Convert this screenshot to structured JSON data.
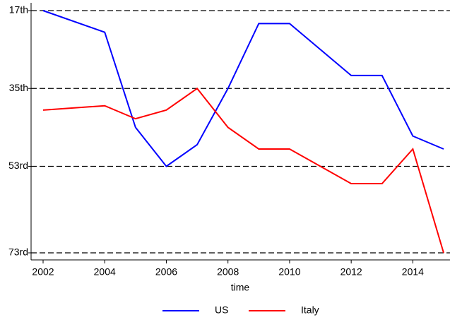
{
  "chart_data": {
    "type": "line",
    "x_label": "time",
    "x": [
      2002,
      2004,
      2005,
      2006,
      2007,
      2008,
      2009,
      2010,
      2012,
      2013,
      2014,
      2015
    ],
    "series": [
      {
        "name": "US",
        "color": "#0000ff",
        "values": [
          17,
          22,
          44,
          53,
          48,
          35,
          20,
          20,
          32,
          32,
          46,
          49
        ]
      },
      {
        "name": "Italy",
        "color": "#ff0000",
        "values": [
          40,
          39,
          42,
          40,
          35,
          44,
          49,
          49,
          57,
          57,
          49,
          73
        ]
      }
    ],
    "xlim": [
      2002,
      2015
    ],
    "xticks": [
      2002,
      2004,
      2006,
      2008,
      2010,
      2012,
      2014
    ],
    "ylim": [
      17,
      73
    ],
    "y_reversed": true,
    "yticks": [
      {
        "value": 17,
        "label": "17th"
      },
      {
        "value": 35,
        "label": "35th"
      },
      {
        "value": 53,
        "label": "53rd"
      },
      {
        "value": 73,
        "label": "73rd"
      }
    ],
    "grid": true,
    "legend": "bottom"
  }
}
